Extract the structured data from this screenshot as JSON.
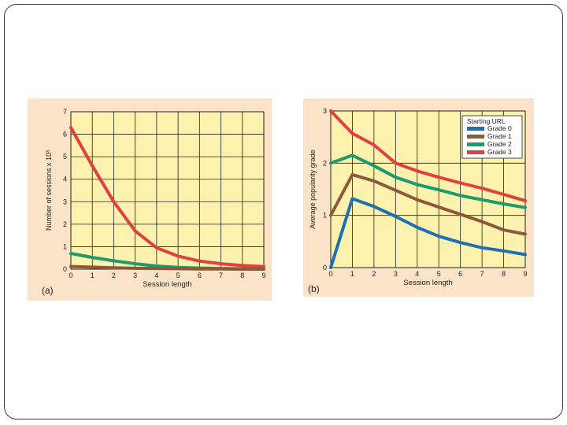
{
  "colors": {
    "background": "#fbe3c8",
    "plot_area": "#fdf1ae",
    "grade0": "#1f6fb3",
    "grade1": "#8b5a3c",
    "grade2": "#1e9a6e",
    "grade3": "#e0403f"
  },
  "chart_data": [
    {
      "type": "line",
      "panel_label": "(a)",
      "xlabel": "Session length",
      "ylabel": "Number of sessions x 10³",
      "xlim": [
        0,
        9
      ],
      "ylim": [
        0,
        7
      ],
      "xticks": [
        "0",
        "1",
        "2",
        "3",
        "4",
        "5",
        "6",
        "7",
        "8",
        "9"
      ],
      "yticks": [
        "0",
        "1",
        "2",
        "3",
        "4",
        "5",
        "6",
        "7"
      ],
      "grid": true,
      "x": [
        0,
        1,
        2,
        3,
        4,
        5,
        6,
        7,
        8,
        9
      ],
      "series": [
        {
          "color": "#e0403f",
          "values": [
            6.3,
            4.6,
            3.0,
            1.7,
            0.95,
            0.58,
            0.36,
            0.24,
            0.16,
            0.12
          ]
        },
        {
          "color": "#1e9a6e",
          "values": [
            0.7,
            0.52,
            0.37,
            0.24,
            0.14,
            0.08,
            0.05,
            0.03,
            0.02,
            0.01
          ]
        },
        {
          "color": "#8b5a3c",
          "values": [
            0.12,
            0.09,
            0.06,
            0.04,
            0.03,
            0.02,
            0.01,
            0.01,
            0.0,
            0.0
          ]
        }
      ]
    },
    {
      "type": "line",
      "panel_label": "(b)",
      "xlabel": "Session length",
      "ylabel": "Average popularity grade",
      "xlim": [
        0,
        9
      ],
      "ylim": [
        0,
        3
      ],
      "xticks": [
        "0",
        "1",
        "2",
        "3",
        "4",
        "5",
        "6",
        "7",
        "8",
        "9"
      ],
      "yticks": [
        "0",
        "1",
        "2",
        "3"
      ],
      "grid": true,
      "legend_title": "Starting URL",
      "legend_position": "top-right",
      "x": [
        0,
        1,
        2,
        3,
        4,
        5,
        6,
        7,
        8,
        9
      ],
      "series": [
        {
          "name": "Grade 0",
          "color": "#1f6fb3",
          "values": [
            0.0,
            1.32,
            1.17,
            0.98,
            0.77,
            0.6,
            0.48,
            0.38,
            0.32,
            0.25
          ]
        },
        {
          "name": "Grade 1",
          "color": "#8b5a3c",
          "values": [
            1.0,
            1.78,
            1.66,
            1.48,
            1.3,
            1.16,
            1.02,
            0.88,
            0.72,
            0.64
          ]
        },
        {
          "name": "Grade 2",
          "color": "#1e9a6e",
          "values": [
            2.0,
            2.15,
            1.95,
            1.73,
            1.59,
            1.49,
            1.38,
            1.3,
            1.22,
            1.15
          ]
        },
        {
          "name": "Grade 3",
          "color": "#e0403f",
          "values": [
            3.0,
            2.57,
            2.35,
            2.0,
            1.85,
            1.73,
            1.62,
            1.52,
            1.4,
            1.28
          ]
        }
      ]
    }
  ]
}
